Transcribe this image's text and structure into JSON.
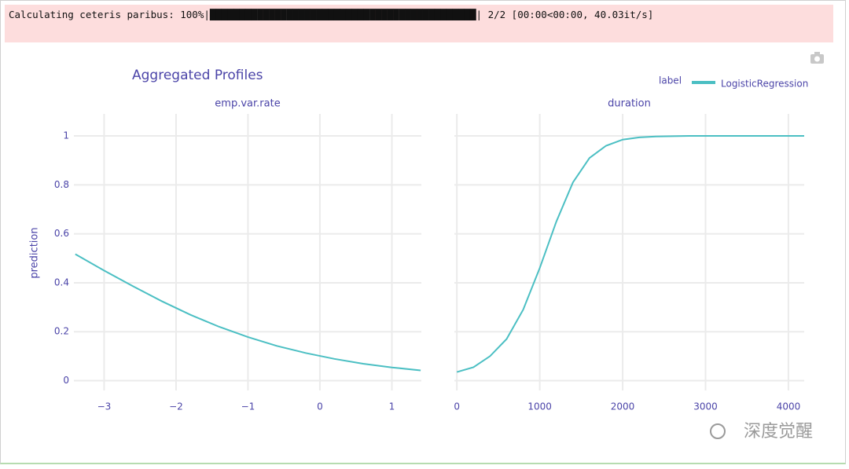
{
  "progress": "Calculating ceteris paribus: 100%|█████████████████████████████████████████████| 2/2 [00:00<00:00, 40.03it/s]",
  "figure": {
    "title": "Aggregated Profiles",
    "legend_title": "label",
    "y_label": "prediction"
  },
  "watermark": "深度觉醒",
  "chart_data": [
    {
      "type": "line",
      "title": "emp.var.rate",
      "x": [
        -3.4,
        -3.0,
        -2.6,
        -2.2,
        -1.8,
        -1.4,
        -1.0,
        -0.6,
        -0.2,
        0.2,
        0.6,
        1.0,
        1.4
      ],
      "series": [
        {
          "name": "LogisticRegression",
          "color": "#4bbfc3",
          "values": [
            0.517,
            0.45,
            0.386,
            0.325,
            0.269,
            0.22,
            0.178,
            0.142,
            0.113,
            0.089,
            0.069,
            0.054,
            0.042
          ]
        }
      ],
      "xlim": [
        -3.42,
        1.41
      ],
      "xticks": [
        {
          "value": -3,
          "label": "−3"
        },
        {
          "value": -2,
          "label": "−2"
        },
        {
          "value": -1,
          "label": "−1"
        },
        0,
        1
      ],
      "ylim": [
        -0.04,
        1.09
      ],
      "yticks": [
        0,
        0.2,
        0.4,
        0.6,
        0.8,
        1
      ],
      "grid": true
    },
    {
      "type": "line",
      "title": "duration",
      "x": [
        0,
        200,
        400,
        600,
        800,
        1000,
        1200,
        1400,
        1600,
        1800,
        2000,
        2200,
        2400,
        2800,
        3200,
        3600,
        4000,
        4190
      ],
      "series": [
        {
          "color": "#4bbfc3",
          "values": [
            0.035,
            0.055,
            0.1,
            0.17,
            0.29,
            0.46,
            0.65,
            0.81,
            0.91,
            0.96,
            0.985,
            0.994,
            0.998,
            1.0,
            1.0,
            1.0,
            1.0,
            1.0
          ]
        }
      ],
      "xlim": [
        -30,
        4190
      ],
      "xticks": [
        0,
        1000,
        2000,
        3000,
        4000
      ],
      "ylim": [
        -0.04,
        1.09
      ],
      "yticks": [
        0,
        0.2,
        0.4,
        0.6,
        0.8,
        1
      ],
      "grid": true
    }
  ]
}
